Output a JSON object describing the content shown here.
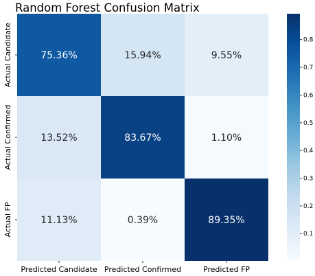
{
  "chart_data": {
    "type": "heatmap",
    "title": "Random Forest Confusion Matrix",
    "x_tick_labels": [
      "Predicted Candidate",
      "Predicted Confirmed",
      "Predicted FP"
    ],
    "y_tick_labels": [
      "Actual Candidate",
      "Actual Confirmed",
      "Actual FP"
    ],
    "values": [
      [
        0.7536,
        0.1594,
        0.0955
      ],
      [
        0.1352,
        0.8367,
        0.011
      ],
      [
        0.1113,
        0.0039,
        0.8935
      ]
    ],
    "cell_labels": [
      [
        "75.36%",
        "15.94%",
        "9.55%"
      ],
      [
        "13.52%",
        "83.67%",
        "1.10%"
      ],
      [
        "11.13%",
        "0.39%",
        "89.35%"
      ]
    ],
    "colormap": "Blues",
    "colorbar": {
      "range": [
        0.0039,
        0.8935
      ],
      "ticks": [
        0.1,
        0.2,
        0.3,
        0.4,
        0.5,
        0.6,
        0.7,
        0.8
      ],
      "tick_labels": [
        "0.1",
        "0.2",
        "0.3",
        "0.4",
        "0.5",
        "0.6",
        "0.7",
        "0.8"
      ]
    },
    "colors": {
      "text_on_dark": "#ffffff",
      "text_on_light": "#262626"
    }
  }
}
